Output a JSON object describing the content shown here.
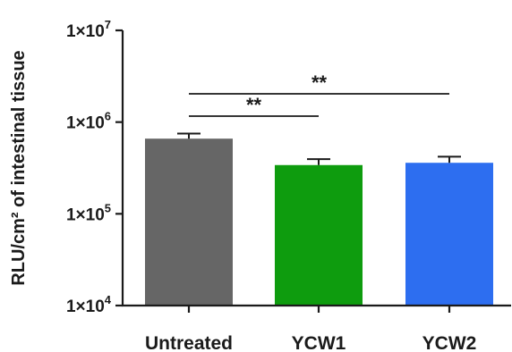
{
  "chart_data": {
    "type": "bar",
    "ylabel": "RLU/cm² of intestinal tissue",
    "yscale": "log",
    "ylim": [
      10000,
      10000000
    ],
    "y_ticks": [
      10000,
      100000,
      1000000,
      10000000
    ],
    "y_tick_labels": [
      {
        "base": "1×10",
        "exp": "4"
      },
      {
        "base": "1×10",
        "exp": "5"
      },
      {
        "base": "1×10",
        "exp": "6"
      },
      {
        "base": "1×10",
        "exp": "7"
      }
    ],
    "categories": [
      "Untreated",
      "YCW1",
      "YCW2"
    ],
    "values": [
      660000,
      340000,
      360000
    ],
    "error_upper": [
      750000,
      395000,
      420000
    ],
    "colors": [
      "#666666",
      "#0e9c0e",
      "#2d6ef0"
    ],
    "grid": false,
    "significance": [
      {
        "from": "Untreated",
        "to": "YCW1",
        "label": "**"
      },
      {
        "from": "Untreated",
        "to": "YCW2",
        "label": "**"
      }
    ]
  }
}
